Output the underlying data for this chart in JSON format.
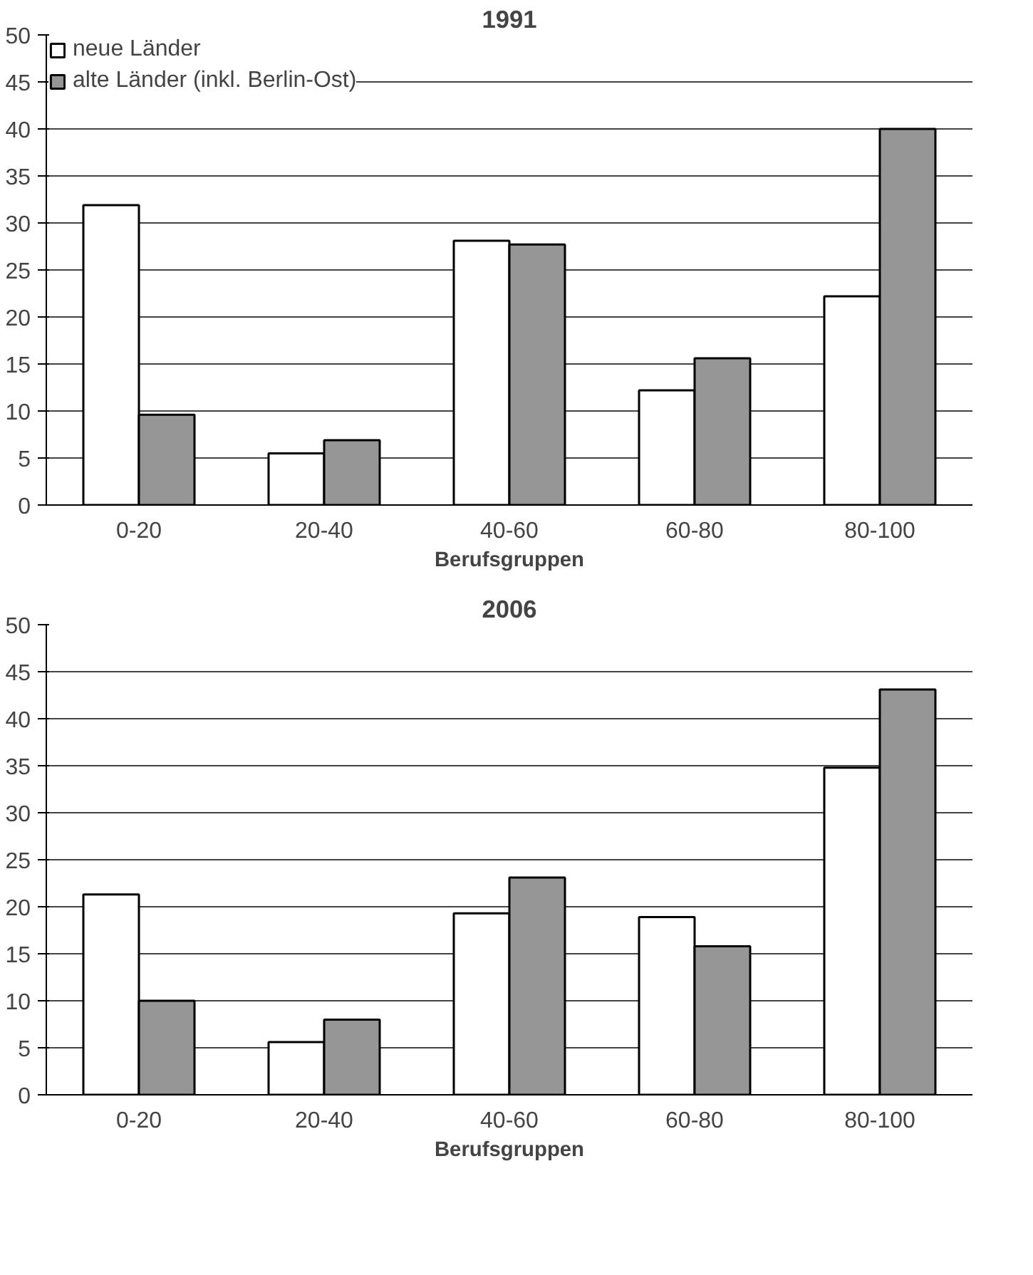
{
  "chart_data": [
    {
      "type": "bar",
      "title": "1991",
      "xlabel": "Berufsgruppen",
      "categories": [
        "0-20",
        "20-40",
        "40-60",
        "60-80",
        "80-100"
      ],
      "ylim": [
        0,
        50
      ],
      "yticks": [
        0,
        5,
        10,
        15,
        20,
        25,
        30,
        35,
        40,
        45,
        50
      ],
      "grid": "y",
      "legend": "top left",
      "series": [
        {
          "name": "neue Länder",
          "color": "#ffffff",
          "values": [
            31.9,
            5.5,
            28.1,
            12.2,
            22.2
          ]
        },
        {
          "name": "alte Länder (inkl. Berlin-Ost)",
          "color": "#969696",
          "values": [
            9.6,
            6.9,
            27.7,
            15.6,
            40
          ]
        }
      ]
    },
    {
      "type": "bar",
      "title": "2006",
      "xlabel": "Berufsgruppen",
      "categories": [
        "0-20",
        "20-40",
        "40-60",
        "60-80",
        "80-100"
      ],
      "ylim": [
        0,
        50
      ],
      "yticks": [
        0,
        5,
        10,
        15,
        20,
        25,
        30,
        35,
        40,
        45,
        50
      ],
      "grid": "y",
      "series": [
        {
          "color": "#ffffff",
          "values": [
            21.3,
            5.6,
            19.3,
            18.9,
            34.8
          ]
        },
        {
          "color": "#969696",
          "values": [
            10,
            8,
            23.1,
            15.8,
            43.1
          ]
        }
      ]
    }
  ]
}
